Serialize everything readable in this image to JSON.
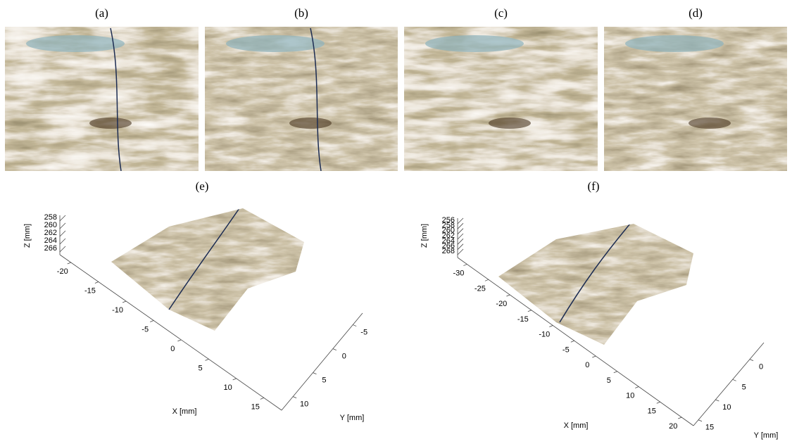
{
  "panels": [
    {
      "label": "(a)"
    },
    {
      "label": "(b)"
    },
    {
      "label": "(c)"
    },
    {
      "label": "(d)"
    }
  ],
  "plots": [
    {
      "label": "(e)",
      "x_label": "X [mm]",
      "y_label": "Y [mm]",
      "z_label": "Z [mm]",
      "x_ticks": [
        -20,
        -15,
        -10,
        -5,
        0,
        5,
        10,
        15
      ],
      "y_ticks": [
        -5,
        0,
        5,
        10
      ],
      "z_ticks": [
        258,
        260,
        262,
        264,
        266
      ]
    },
    {
      "label": "(f)",
      "x_label": "X [mm]",
      "y_label": "Y [mm]",
      "z_label": "Z [mm]",
      "x_ticks": [
        -30,
        -25,
        -20,
        -15,
        -10,
        -5,
        0,
        5,
        10,
        15,
        20
      ],
      "y_ticks": [
        0,
        5,
        10,
        15
      ],
      "z_ticks": [
        256,
        258,
        260,
        262,
        264,
        266,
        268
      ]
    }
  ]
}
